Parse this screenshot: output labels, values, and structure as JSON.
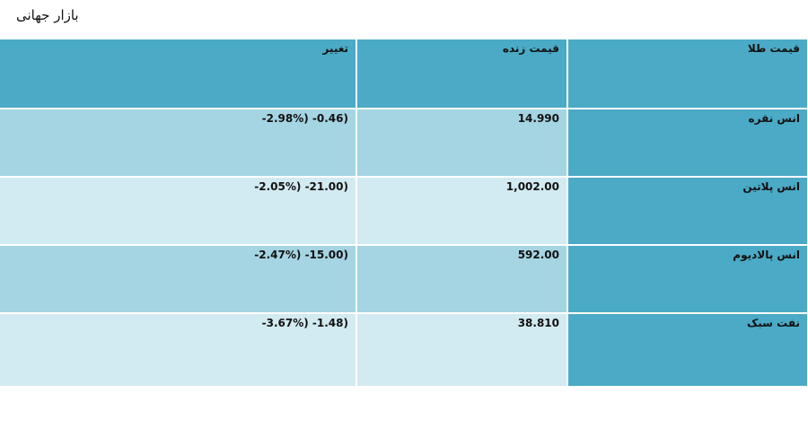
{
  "title": "بازار جهانی",
  "table": {
    "headers": {
      "name": "قیمت طلا",
      "price": "قیمت زنده",
      "change": "تغییر"
    },
    "rows": [
      {
        "name": "انس نقره",
        "price": "14.990",
        "change": "-2.98%) -0.46)"
      },
      {
        "name": "انس پلاتین",
        "price": "1,002.00",
        "change": "-2.05%) -21.00)"
      },
      {
        "name": "انس پالادیوم",
        "price": "592.00",
        "change": "-2.47%) -15.00)"
      },
      {
        "name": "نفت سبک",
        "price": "38.810",
        "change": "-3.67%) -1.48)"
      }
    ]
  },
  "colors": {
    "header": "#4baac6",
    "row_dark": "#a5d4e2",
    "row_light": "#d2eaf1"
  }
}
